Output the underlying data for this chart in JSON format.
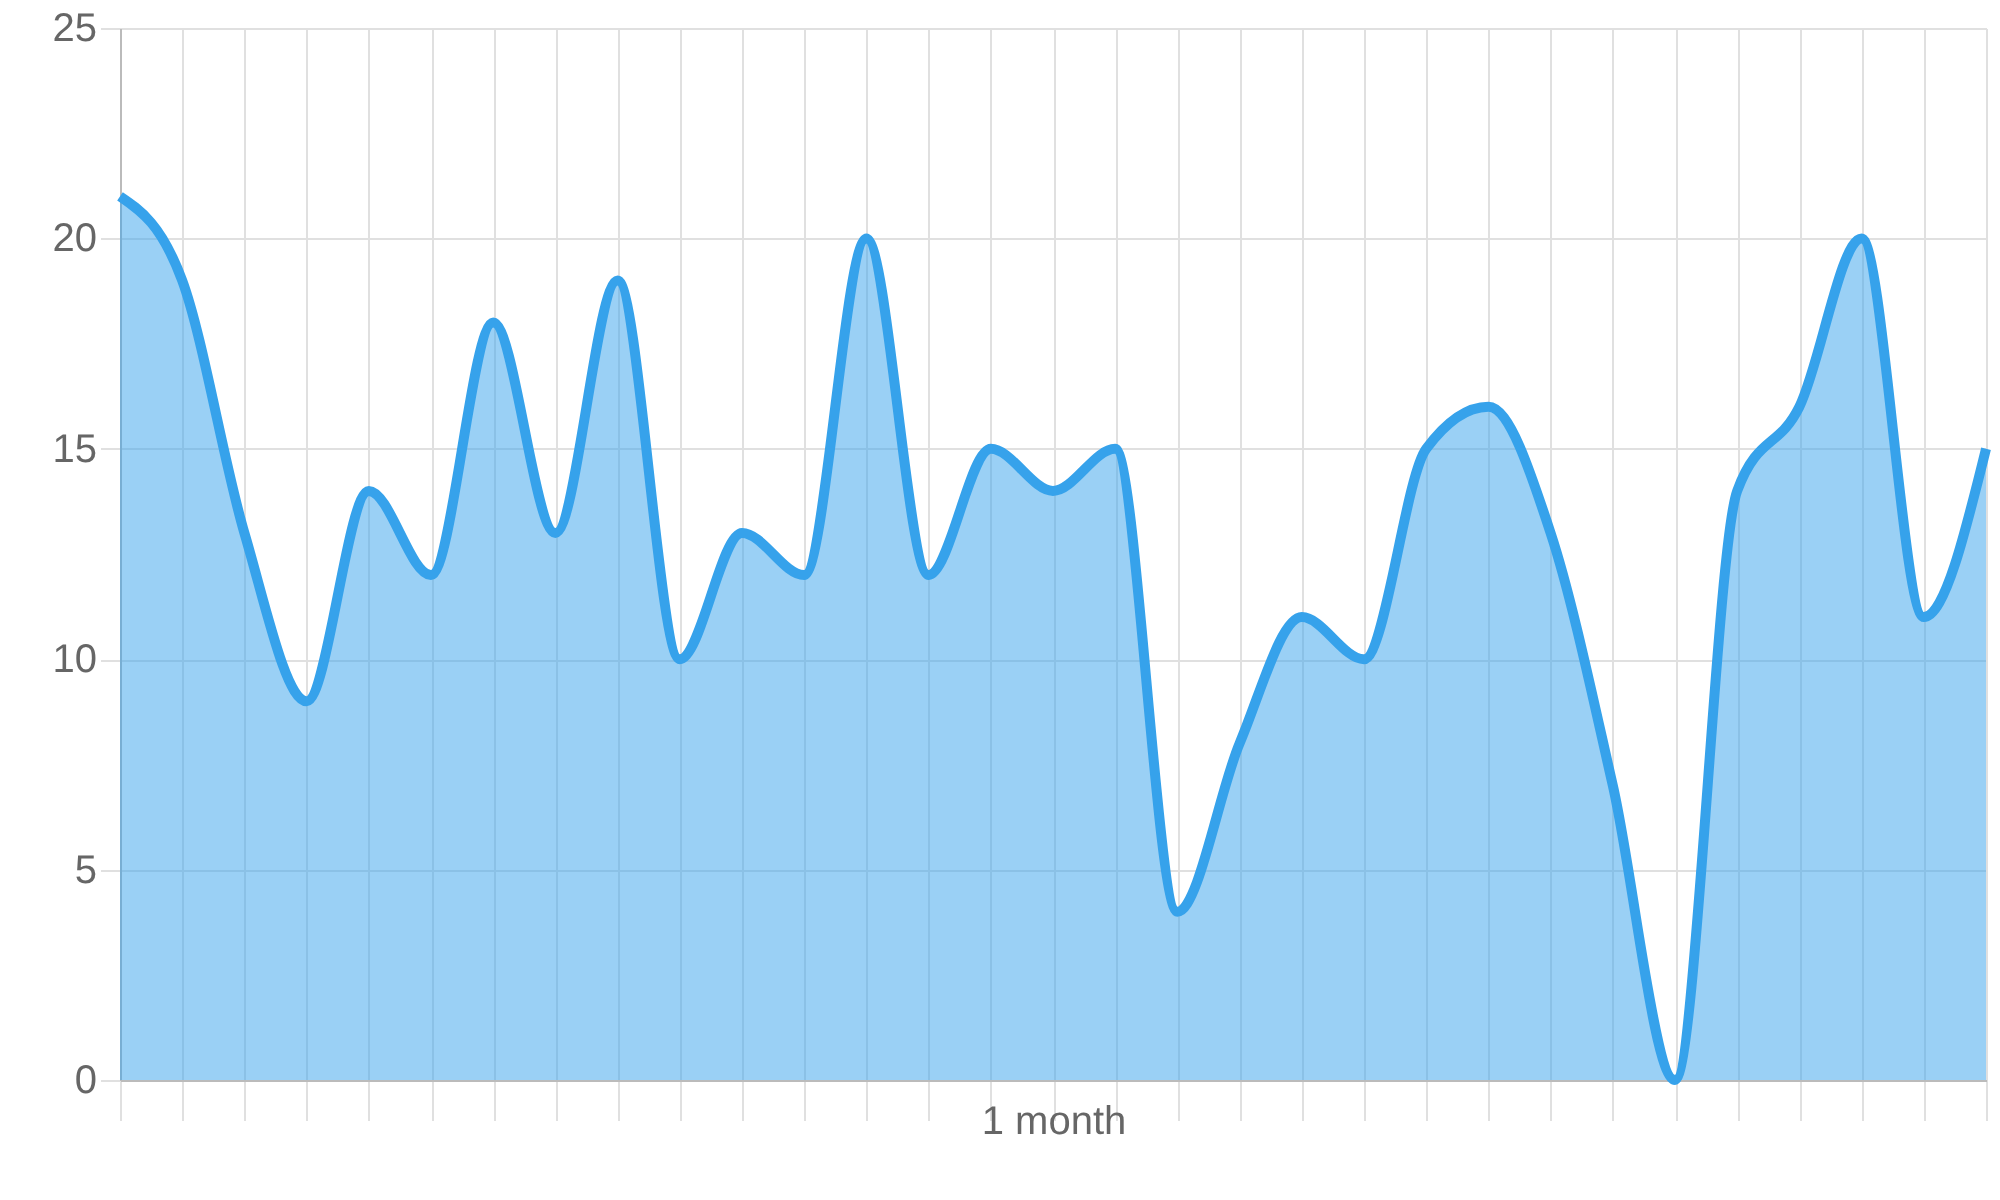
{
  "chart_data": {
    "type": "area",
    "xlabel": "1 month",
    "categories": [
      null,
      null,
      null,
      null,
      null,
      null,
      null,
      null,
      null,
      null,
      null,
      null,
      null,
      null,
      null,
      null,
      null,
      null,
      null,
      null,
      null,
      null,
      null,
      null,
      null,
      null,
      null,
      null,
      null,
      null,
      null
    ],
    "series": [
      {
        "color": "#36a2eb",
        "values": [
          21,
          19,
          13,
          9,
          14,
          12,
          18,
          13,
          19,
          10,
          13,
          12,
          20,
          12,
          15,
          14,
          15,
          4,
          8,
          11,
          10,
          15,
          16,
          13,
          7,
          0,
          14,
          16,
          20,
          11,
          15
        ]
      }
    ],
    "ylim": [
      0,
      25
    ],
    "yticks": [
      0,
      5,
      10,
      15,
      20,
      25
    ],
    "grid": true,
    "tick_labels": "y",
    "marker": "none",
    "line_style": "solid"
  }
}
